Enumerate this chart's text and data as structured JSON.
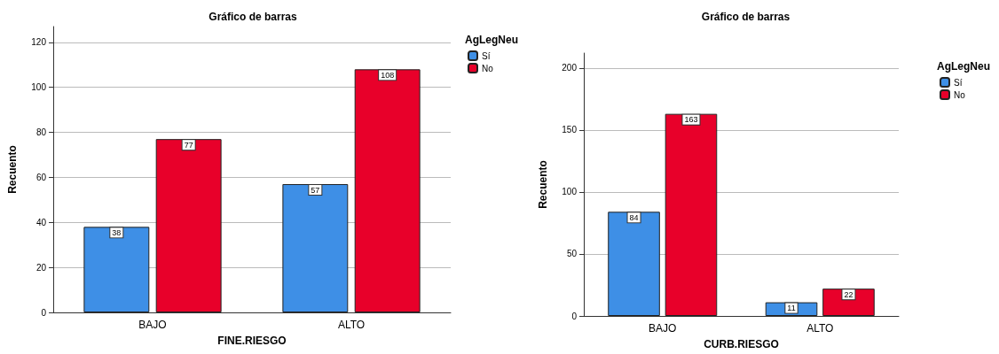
{
  "chart_data": [
    {
      "type": "bar",
      "title": "Gráfico de barras",
      "xlabel": "FINE.RIESGO",
      "ylabel": "Recuento",
      "legend_title": "AgLegNeu",
      "categories": [
        "BAJO",
        "ALTO"
      ],
      "series": [
        {
          "name": "Sí",
          "color": "#3e8fe6",
          "values": [
            38,
            57
          ]
        },
        {
          "name": "No",
          "color": "#e8002a",
          "values": [
            77,
            108
          ]
        }
      ],
      "ylim": [
        0,
        127
      ],
      "yticks": [
        0,
        20,
        40,
        60,
        80,
        100,
        120
      ],
      "grid": "y",
      "legend": "top right",
      "data_labels": true
    },
    {
      "type": "bar",
      "title": "Gráfico de barras",
      "xlabel": "CURB.RIESGO",
      "ylabel": "Recuento",
      "legend_title": "AgLegNeu",
      "categories": [
        "BAJO",
        "ALTO"
      ],
      "series": [
        {
          "name": "Sí",
          "color": "#3e8fe6",
          "values": [
            84,
            11
          ]
        },
        {
          "name": "No",
          "color": "#e8002a",
          "values": [
            163,
            22
          ]
        }
      ],
      "ylim": [
        0,
        212
      ],
      "yticks": [
        0,
        50,
        100,
        150,
        200
      ],
      "grid": "y",
      "legend": "top right",
      "data_labels": true
    }
  ]
}
